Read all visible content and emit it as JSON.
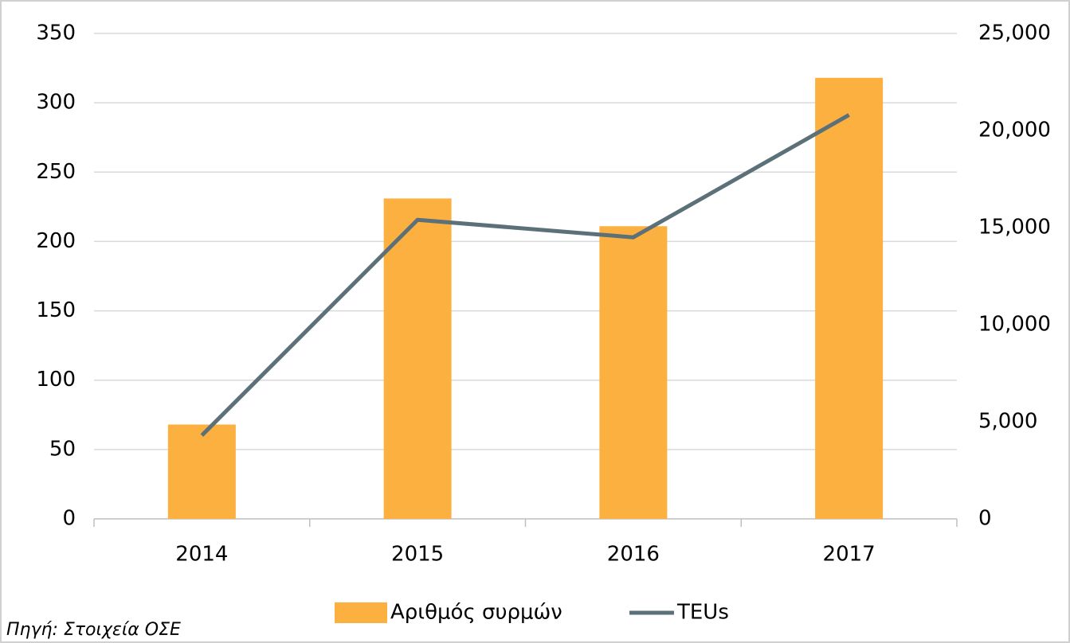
{
  "chart_data": {
    "type": "bar_line",
    "categories": [
      "2014",
      "2015",
      "2016",
      "2017"
    ],
    "series": [
      {
        "name": "Αριθμός συρμών",
        "type": "bar",
        "color": "#fbb040",
        "values": [
          68,
          231,
          211,
          318
        ]
      },
      {
        "name": "TEUs",
        "type": "line",
        "axis": "y2",
        "color": "#5b7078",
        "values": [
          4300,
          15400,
          14500,
          20800
        ]
      }
    ],
    "ylim": [
      0,
      350
    ],
    "yticks": [
      0,
      50,
      100,
      150,
      200,
      250,
      300,
      350
    ],
    "y2lim": [
      0,
      25000
    ],
    "y2ticks": [
      0,
      {
        "value": 5000,
        "label": "5,000"
      },
      {
        "value": 10000,
        "label": "10,000"
      },
      {
        "value": 15000,
        "label": "15,000"
      },
      {
        "value": 20000,
        "label": "20,000"
      },
      {
        "value": 25000,
        "label": "25,000"
      }
    ],
    "grid": true,
    "legend": "bottom",
    "source": "Πηγή: Στοιχεία ΟΣΕ"
  }
}
